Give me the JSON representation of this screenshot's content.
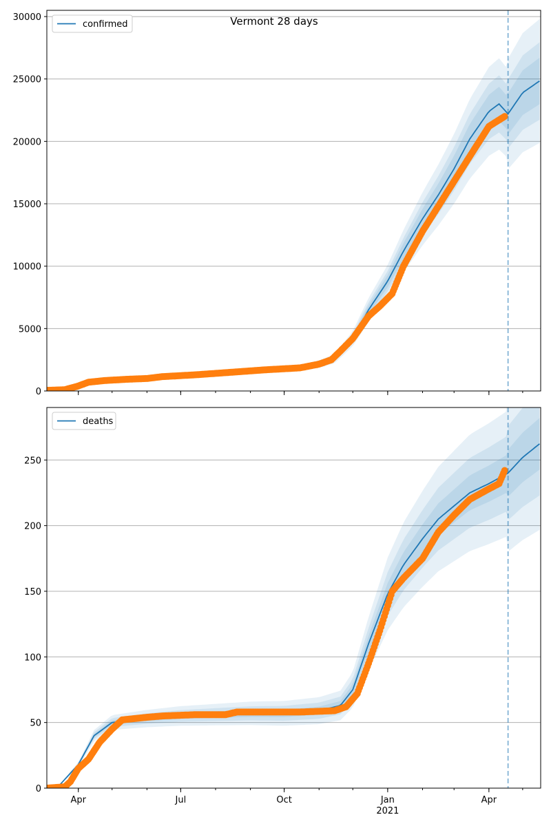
{
  "title": "Vermont 28 days",
  "chart_data": [
    {
      "type": "line",
      "series": [
        {
          "name": "confirmed"
        }
      ],
      "xlim": [
        "2020-03-04",
        "2021-05-17"
      ],
      "ylim": [
        0,
        30500
      ],
      "yticks": [
        0,
        5000,
        10000,
        15000,
        20000,
        25000,
        30000
      ],
      "grid": "horizontal",
      "legend": "top-left",
      "forecast_start": "2021-04-18",
      "model": [
        [
          "2020-03-04",
          50
        ],
        [
          "2020-03-20",
          100
        ],
        [
          "2020-04-05",
          600
        ],
        [
          "2020-04-20",
          820
        ],
        [
          "2020-05-15",
          950
        ],
        [
          "2020-06-15",
          1150
        ],
        [
          "2020-07-15",
          1300
        ],
        [
          "2020-08-15",
          1500
        ],
        [
          "2020-09-15",
          1680
        ],
        [
          "2020-10-15",
          1850
        ],
        [
          "2020-11-01",
          2150
        ],
        [
          "2020-11-15",
          2600
        ],
        [
          "2020-12-01",
          4200
        ],
        [
          "2020-12-15",
          6500
        ],
        [
          "2021-01-01",
          8800
        ],
        [
          "2021-01-15",
          11200
        ],
        [
          "2021-02-01",
          13800
        ],
        [
          "2021-02-15",
          15700
        ],
        [
          "2021-03-01",
          17800
        ],
        [
          "2021-03-15",
          20200
        ],
        [
          "2021-04-01",
          22400
        ],
        [
          "2021-04-10",
          23000
        ],
        [
          "2021-04-18",
          22200
        ],
        [
          "2021-05-01",
          23900
        ],
        [
          "2021-05-17",
          24900
        ]
      ],
      "band_spread": [
        0.06,
        0.1,
        0.16
      ],
      "observed": [
        [
          "2020-03-04",
          50
        ],
        [
          "2020-03-20",
          100
        ],
        [
          "2020-04-01",
          400
        ],
        [
          "2020-04-10",
          700
        ],
        [
          "2020-04-25",
          840
        ],
        [
          "2020-05-15",
          940
        ],
        [
          "2020-06-01",
          1000
        ],
        [
          "2020-06-15",
          1150
        ],
        [
          "2020-07-15",
          1300
        ],
        [
          "2020-08-15",
          1500
        ],
        [
          "2020-09-15",
          1700
        ],
        [
          "2020-10-15",
          1850
        ],
        [
          "2020-11-01",
          2150
        ],
        [
          "2020-11-12",
          2500
        ],
        [
          "2020-11-20",
          3200
        ],
        [
          "2020-12-01",
          4200
        ],
        [
          "2020-12-15",
          6000
        ],
        [
          "2020-12-25",
          6800
        ],
        [
          "2021-01-05",
          7800
        ],
        [
          "2021-01-15",
          10000
        ],
        [
          "2021-02-01",
          12800
        ],
        [
          "2021-02-15",
          14800
        ],
        [
          "2021-03-01",
          16800
        ],
        [
          "2021-03-15",
          18800
        ],
        [
          "2021-04-01",
          21200
        ],
        [
          "2021-04-15",
          22000
        ]
      ]
    },
    {
      "type": "line",
      "series": [
        {
          "name": "deaths"
        }
      ],
      "xlim": [
        "2020-03-04",
        "2021-05-17"
      ],
      "ylim": [
        0,
        290
      ],
      "yticks": [
        0,
        50,
        100,
        150,
        200,
        250
      ],
      "xticks": [
        {
          "date": "2020-04-01",
          "label": "Apr"
        },
        {
          "date": "2020-07-01",
          "label": "Jul"
        },
        {
          "date": "2020-10-01",
          "label": "Oct"
        },
        {
          "date": "2021-01-01",
          "label": "Jan",
          "sub": "2021"
        },
        {
          "date": "2021-04-01",
          "label": "Apr"
        }
      ],
      "grid": "horizontal",
      "legend": "top-left",
      "forecast_start": "2021-04-18",
      "model": [
        [
          "2020-03-04",
          0
        ],
        [
          "2020-03-15",
          2
        ],
        [
          "2020-04-01",
          18
        ],
        [
          "2020-04-15",
          40
        ],
        [
          "2020-05-01",
          50
        ],
        [
          "2020-06-01",
          53
        ],
        [
          "2020-07-01",
          55
        ],
        [
          "2020-08-01",
          56
        ],
        [
          "2020-09-01",
          57
        ],
        [
          "2020-10-01",
          57
        ],
        [
          "2020-11-01",
          59
        ],
        [
          "2020-11-20",
          63
        ],
        [
          "2020-12-01",
          75
        ],
        [
          "2020-12-15",
          110
        ],
        [
          "2021-01-01",
          148
        ],
        [
          "2021-01-15",
          170
        ],
        [
          "2021-02-01",
          190
        ],
        [
          "2021-02-15",
          205
        ],
        [
          "2021-03-01",
          215
        ],
        [
          "2021-03-15",
          225
        ],
        [
          "2021-04-01",
          232
        ],
        [
          "2021-04-18",
          240
        ],
        [
          "2021-05-01",
          252
        ],
        [
          "2021-05-17",
          263
        ]
      ],
      "band_spread": [
        0.06,
        0.12,
        0.2
      ],
      "observed": [
        [
          "2020-03-04",
          0
        ],
        [
          "2020-03-20",
          1
        ],
        [
          "2020-03-25",
          5
        ],
        [
          "2020-04-01",
          15
        ],
        [
          "2020-04-10",
          22
        ],
        [
          "2020-04-20",
          35
        ],
        [
          "2020-05-01",
          45
        ],
        [
          "2020-05-10",
          52
        ],
        [
          "2020-06-01",
          54
        ],
        [
          "2020-06-15",
          55
        ],
        [
          "2020-07-15",
          56
        ],
        [
          "2020-08-10",
          56
        ],
        [
          "2020-08-20",
          58
        ],
        [
          "2020-10-15",
          58
        ],
        [
          "2020-11-15",
          59
        ],
        [
          "2020-11-25",
          62
        ],
        [
          "2020-12-05",
          72
        ],
        [
          "2020-12-15",
          95
        ],
        [
          "2020-12-25",
          120
        ],
        [
          "2021-01-05",
          150
        ],
        [
          "2021-01-15",
          160
        ],
        [
          "2021-02-01",
          175
        ],
        [
          "2021-02-15",
          195
        ],
        [
          "2021-03-01",
          208
        ],
        [
          "2021-03-15",
          220
        ],
        [
          "2021-04-01",
          228
        ],
        [
          "2021-04-10",
          232
        ],
        [
          "2021-04-15",
          242
        ]
      ]
    }
  ]
}
